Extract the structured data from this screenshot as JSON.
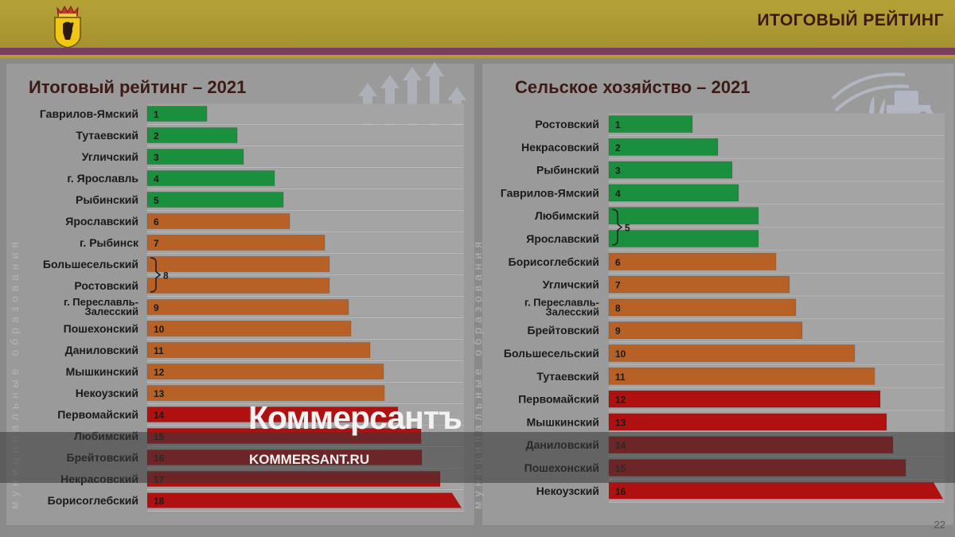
{
  "header": {
    "title": "ИТОГОВЫЙ РЕЙТИНГ"
  },
  "side_label": "муниципальные образования",
  "page_number": "22",
  "watermark": {
    "logo": "Коммерсантъ",
    "url": "KOMMERSANT.RU"
  },
  "colors": {
    "green": "#1a8f3e",
    "orange": "#b86126",
    "red": "#b01010",
    "header": "#b5a237",
    "accent": "#7a3f60"
  },
  "chart_data": [
    {
      "type": "bar",
      "orientation": "horizontal",
      "title": "Итоговый рейтинг – 2021",
      "categories": [
        "Гаврилов-Ямский",
        "Тутаевский",
        "Угличский",
        "г. Ярославль",
        "Рыбинский",
        "Ярославский",
        "г. Рыбинск",
        "Большесельский",
        "Ростовский",
        "г. Переславль-Залесский",
        "Пошехонский",
        "Даниловский",
        "Мышкинский",
        "Некоузский",
        "Первомайский",
        "Любимский",
        "Брейтовский",
        "Некрасовский",
        "Борисоглебский"
      ],
      "ranks": [
        "1",
        "2",
        "3",
        "4",
        "5",
        "6",
        "7",
        "",
        "",
        "9",
        "10",
        "11",
        "12",
        "13",
        "14",
        "15",
        "16",
        "17",
        "18"
      ],
      "group_labels": [
        {
          "rows": [
            7,
            8
          ],
          "label": "8"
        }
      ],
      "values": [
        75,
        113,
        121,
        160,
        171,
        179,
        223,
        229,
        229,
        253,
        256,
        280,
        297,
        298,
        315,
        344,
        345,
        368,
        395
      ],
      "groups": [
        "green",
        "green",
        "green",
        "green",
        "green",
        "orange",
        "orange",
        "orange",
        "orange",
        "orange",
        "orange",
        "orange",
        "orange",
        "orange",
        "red",
        "red",
        "red",
        "red",
        "red"
      ]
    },
    {
      "type": "bar",
      "orientation": "horizontal",
      "title": "Сельское хозяйство – 2021",
      "categories": [
        "Ростовский",
        "Некрасовский",
        "Рыбинский",
        "Гаврилов-Ямский",
        "Любимский",
        "Ярославский",
        "Борисоглебский",
        "Угличский",
        "г. Переславль-Залесский",
        "Брейтовский",
        "Большесельский",
        "Тутаевский",
        "Первомайский",
        "Мышкинский",
        "Даниловский",
        "Пошехонский",
        "Некоузский"
      ],
      "ranks": [
        "1",
        "2",
        "3",
        "4",
        "",
        "",
        "6",
        "7",
        "8",
        "9",
        "10",
        "11",
        "12",
        "13",
        "14",
        "15",
        "16"
      ],
      "group_labels": [
        {
          "rows": [
            4,
            5
          ],
          "label": "5"
        }
      ],
      "values": [
        105,
        137,
        155,
        163,
        188,
        188,
        210,
        227,
        235,
        243,
        309,
        334,
        341,
        349,
        357,
        373,
        420
      ],
      "groups": [
        "green",
        "green",
        "green",
        "green",
        "green",
        "green",
        "orange",
        "orange",
        "orange",
        "orange",
        "orange",
        "orange",
        "red",
        "red",
        "red",
        "red",
        "red"
      ]
    }
  ]
}
